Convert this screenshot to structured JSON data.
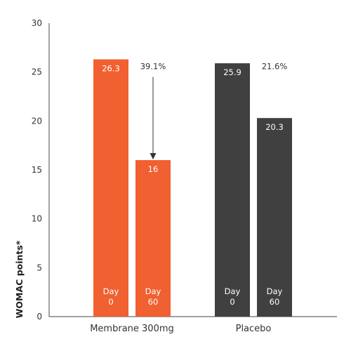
{
  "chart_data": {
    "type": "bar",
    "ylabel": "WOMAC points*",
    "ylim": [
      0,
      30
    ],
    "yticks": [
      0,
      5,
      10,
      15,
      20,
      25,
      30
    ],
    "grid": false,
    "groups": [
      {
        "name": "Membrane 300mg",
        "color": "#f06030",
        "reduction_label": "39.1%",
        "reduction_arrow": true,
        "bars": [
          {
            "value": 26.3,
            "label": "26.3",
            "day_word": "Day",
            "day_num": "0"
          },
          {
            "value": 16,
            "label": "16",
            "day_word": "Day",
            "day_num": "60"
          }
        ]
      },
      {
        "name": "Placebo",
        "color": "#404040",
        "reduction_label": "21.6%",
        "reduction_arrow": false,
        "bars": [
          {
            "value": 25.9,
            "label": "25.9",
            "day_word": "Day",
            "day_num": "0"
          },
          {
            "value": 20.3,
            "label": "20.3",
            "day_word": "Day",
            "day_num": "60"
          }
        ]
      }
    ]
  }
}
